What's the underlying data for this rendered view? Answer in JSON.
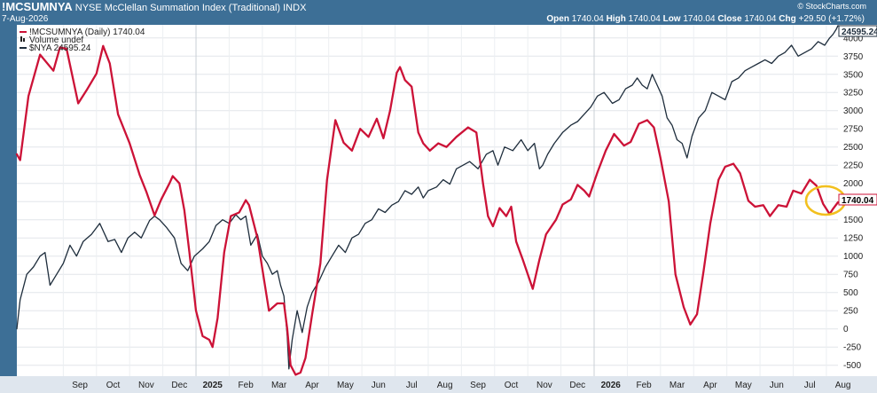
{
  "header": {
    "symbol": "!MCSUMNYA",
    "name": "NYSE McClellan Summation Index (Traditional)",
    "exchange": "INDX",
    "date": "7-Aug-2026",
    "credit": "© StockCharts.com",
    "open_label": "Open",
    "open": "1740.04",
    "high_label": "High",
    "high": "1740.04",
    "low_label": "Low",
    "low": "1740.04",
    "close_label": "Close",
    "close": "1740.04",
    "chg_label": "Chg",
    "chg": "+29.50 (+1.72%)"
  },
  "legend": {
    "item1": "!MCSUMNYA (Daily) 1740.04",
    "item2": "Volume undef",
    "item3": "$NYA 24595.24"
  },
  "price_labels": {
    "nya": "24595.24",
    "sum": "1740.04"
  },
  "colors": {
    "summation": "#cc1237",
    "nya": "#1e2d3c",
    "highlight": "#f2c01e",
    "background": "#3d6f96",
    "plot": "#ffffff"
  },
  "chart_data": {
    "type": "line",
    "y_ticks": [
      -500,
      -250,
      0,
      250,
      500,
      750,
      1000,
      1250,
      1500,
      1750,
      2000,
      2250,
      2500,
      2750,
      3000,
      3250,
      3500,
      3750,
      4000
    ],
    "ylim": [
      -650,
      4180
    ],
    "x_months": [
      "Sep",
      "Oct",
      "Nov",
      "Dec",
      "2025",
      "Feb",
      "Mar",
      "Apr",
      "May",
      "Jun",
      "Jul",
      "Aug",
      "Sep",
      "Oct",
      "Nov",
      "Dec",
      "2026",
      "Feb",
      "Mar",
      "Apr",
      "May",
      "Jun",
      "Jul",
      "Aug"
    ],
    "x_range_months": [
      -1.4,
      23.35
    ],
    "grid": true,
    "legend_position": "top-left",
    "series": [
      {
        "name": "!MCSUMNYA",
        "color": "#cc1237",
        "points": [
          [
            -1.4,
            2400
          ],
          [
            -1.3,
            2320
          ],
          [
            -1.05,
            3200
          ],
          [
            -0.7,
            3770
          ],
          [
            -0.3,
            3550
          ],
          [
            -0.1,
            3870
          ],
          [
            0.1,
            3850
          ],
          [
            0.45,
            3100
          ],
          [
            0.7,
            3280
          ],
          [
            1.0,
            3510
          ],
          [
            1.2,
            3890
          ],
          [
            1.4,
            3650
          ],
          [
            1.65,
            2950
          ],
          [
            2.0,
            2550
          ],
          [
            2.3,
            2120
          ],
          [
            2.5,
            1890
          ],
          [
            2.75,
            1560
          ],
          [
            2.95,
            1780
          ],
          [
            3.2,
            2000
          ],
          [
            3.3,
            2100
          ],
          [
            3.5,
            2000
          ],
          [
            3.65,
            1630
          ],
          [
            3.8,
            1050
          ],
          [
            4.0,
            250
          ],
          [
            4.2,
            -100
          ],
          [
            4.4,
            -150
          ],
          [
            4.5,
            -250
          ],
          [
            4.65,
            150
          ],
          [
            4.85,
            1050
          ],
          [
            5.05,
            1550
          ],
          [
            5.3,
            1600
          ],
          [
            5.5,
            1770
          ],
          [
            5.6,
            1700
          ],
          [
            5.85,
            1250
          ],
          [
            6.0,
            820
          ],
          [
            6.2,
            250
          ],
          [
            6.45,
            350
          ],
          [
            6.65,
            350
          ],
          [
            6.75,
            0
          ],
          [
            6.85,
            -500
          ],
          [
            7.0,
            -630
          ],
          [
            7.15,
            -600
          ],
          [
            7.3,
            -400
          ],
          [
            7.5,
            200
          ],
          [
            7.75,
            900
          ],
          [
            7.95,
            2050
          ],
          [
            8.2,
            2870
          ],
          [
            8.45,
            2560
          ],
          [
            8.7,
            2450
          ],
          [
            8.95,
            2750
          ],
          [
            9.2,
            2640
          ],
          [
            9.45,
            2890
          ],
          [
            9.65,
            2620
          ],
          [
            9.85,
            3000
          ],
          [
            10.05,
            3520
          ],
          [
            10.15,
            3600
          ],
          [
            10.3,
            3420
          ],
          [
            10.5,
            3330
          ],
          [
            10.7,
            2700
          ],
          [
            10.85,
            2550
          ],
          [
            11.05,
            2450
          ],
          [
            11.3,
            2550
          ],
          [
            11.55,
            2500
          ],
          [
            11.85,
            2640
          ],
          [
            12.2,
            2770
          ],
          [
            12.45,
            2700
          ],
          [
            12.65,
            2000
          ],
          [
            12.8,
            1550
          ],
          [
            12.95,
            1410
          ],
          [
            13.15,
            1660
          ],
          [
            13.35,
            1550
          ],
          [
            13.5,
            1680
          ],
          [
            13.65,
            1200
          ],
          [
            13.85,
            950
          ],
          [
            14.0,
            750
          ],
          [
            14.15,
            550
          ],
          [
            14.35,
            950
          ],
          [
            14.55,
            1300
          ],
          [
            14.85,
            1500
          ],
          [
            15.05,
            1710
          ],
          [
            15.3,
            1780
          ],
          [
            15.5,
            1980
          ],
          [
            15.7,
            1900
          ],
          [
            15.85,
            1820
          ],
          [
            16.1,
            2150
          ],
          [
            16.35,
            2450
          ],
          [
            16.6,
            2680
          ],
          [
            16.9,
            2520
          ],
          [
            17.1,
            2570
          ],
          [
            17.35,
            2820
          ],
          [
            17.6,
            2870
          ],
          [
            17.8,
            2770
          ],
          [
            18.0,
            2350
          ],
          [
            18.25,
            1750
          ],
          [
            18.45,
            750
          ],
          [
            18.7,
            300
          ],
          [
            18.9,
            60
          ],
          [
            19.1,
            200
          ],
          [
            19.3,
            800
          ],
          [
            19.5,
            1450
          ],
          [
            19.75,
            2050
          ],
          [
            19.95,
            2230
          ],
          [
            20.2,
            2270
          ],
          [
            20.4,
            2140
          ],
          [
            20.65,
            1760
          ],
          [
            20.85,
            1680
          ],
          [
            21.1,
            1700
          ],
          [
            21.3,
            1550
          ],
          [
            21.55,
            1700
          ],
          [
            21.8,
            1680
          ],
          [
            22.0,
            1900
          ],
          [
            22.25,
            1860
          ],
          [
            22.5,
            2050
          ],
          [
            22.7,
            1970
          ],
          [
            22.9,
            1720
          ],
          [
            23.1,
            1580
          ],
          [
            23.2,
            1650
          ],
          [
            23.35,
            1740
          ]
        ]
      },
      {
        "name": "$NYA",
        "color": "#1e2d3c",
        "points": [
          [
            -1.4,
            0
          ],
          [
            -1.3,
            400
          ],
          [
            -1.1,
            750
          ],
          [
            -0.9,
            850
          ],
          [
            -0.7,
            1000
          ],
          [
            -0.55,
            1050
          ],
          [
            -0.4,
            600
          ],
          [
            -0.2,
            750
          ],
          [
            0.0,
            900
          ],
          [
            0.2,
            1150
          ],
          [
            0.4,
            1000
          ],
          [
            0.6,
            1200
          ],
          [
            0.85,
            1300
          ],
          [
            1.1,
            1450
          ],
          [
            1.35,
            1200
          ],
          [
            1.55,
            1230
          ],
          [
            1.75,
            1050
          ],
          [
            1.95,
            1250
          ],
          [
            2.15,
            1330
          ],
          [
            2.35,
            1250
          ],
          [
            2.6,
            1490
          ],
          [
            2.75,
            1550
          ],
          [
            2.9,
            1500
          ],
          [
            3.1,
            1400
          ],
          [
            3.35,
            1250
          ],
          [
            3.55,
            900
          ],
          [
            3.75,
            800
          ],
          [
            3.95,
            1000
          ],
          [
            4.2,
            1100
          ],
          [
            4.4,
            1200
          ],
          [
            4.6,
            1420
          ],
          [
            4.8,
            1500
          ],
          [
            5.0,
            1450
          ],
          [
            5.2,
            1570
          ],
          [
            5.35,
            1500
          ],
          [
            5.5,
            1550
          ],
          [
            5.65,
            1150
          ],
          [
            5.85,
            1300
          ],
          [
            6.0,
            1000
          ],
          [
            6.15,
            900
          ],
          [
            6.3,
            750
          ],
          [
            6.45,
            800
          ],
          [
            6.55,
            600
          ],
          [
            6.65,
            450
          ],
          [
            6.75,
            -100
          ],
          [
            6.8,
            -550
          ],
          [
            6.9,
            -150
          ],
          [
            7.05,
            250
          ],
          [
            7.2,
            -50
          ],
          [
            7.35,
            300
          ],
          [
            7.5,
            500
          ],
          [
            7.7,
            650
          ],
          [
            7.9,
            850
          ],
          [
            8.1,
            1000
          ],
          [
            8.3,
            1150
          ],
          [
            8.5,
            1050
          ],
          [
            8.7,
            1250
          ],
          [
            8.9,
            1300
          ],
          [
            9.1,
            1450
          ],
          [
            9.3,
            1500
          ],
          [
            9.5,
            1650
          ],
          [
            9.7,
            1600
          ],
          [
            9.9,
            1700
          ],
          [
            10.1,
            1750
          ],
          [
            10.3,
            1900
          ],
          [
            10.5,
            1850
          ],
          [
            10.7,
            1950
          ],
          [
            10.85,
            1800
          ],
          [
            11.0,
            1900
          ],
          [
            11.25,
            1950
          ],
          [
            11.45,
            2050
          ],
          [
            11.65,
            1990
          ],
          [
            11.85,
            2200
          ],
          [
            12.05,
            2250
          ],
          [
            12.25,
            2300
          ],
          [
            12.5,
            2200
          ],
          [
            12.75,
            2400
          ],
          [
            12.95,
            2450
          ],
          [
            13.1,
            2250
          ],
          [
            13.3,
            2500
          ],
          [
            13.55,
            2450
          ],
          [
            13.8,
            2600
          ],
          [
            14.0,
            2450
          ],
          [
            14.2,
            2550
          ],
          [
            14.35,
            2200
          ],
          [
            14.45,
            2250
          ],
          [
            14.6,
            2400
          ],
          [
            14.8,
            2550
          ],
          [
            15.05,
            2700
          ],
          [
            15.3,
            2800
          ],
          [
            15.5,
            2850
          ],
          [
            15.7,
            2950
          ],
          [
            15.9,
            3050
          ],
          [
            16.1,
            3200
          ],
          [
            16.3,
            3250
          ],
          [
            16.55,
            3100
          ],
          [
            16.75,
            3150
          ],
          [
            16.95,
            3300
          ],
          [
            17.15,
            3350
          ],
          [
            17.3,
            3450
          ],
          [
            17.45,
            3350
          ],
          [
            17.6,
            3300
          ],
          [
            17.75,
            3500
          ],
          [
            17.9,
            3350
          ],
          [
            18.05,
            3200
          ],
          [
            18.2,
            2900
          ],
          [
            18.35,
            2800
          ],
          [
            18.5,
            2600
          ],
          [
            18.65,
            2550
          ],
          [
            18.8,
            2350
          ],
          [
            18.95,
            2650
          ],
          [
            19.15,
            2900
          ],
          [
            19.35,
            3000
          ],
          [
            19.55,
            3250
          ],
          [
            19.75,
            3200
          ],
          [
            19.95,
            3150
          ],
          [
            20.15,
            3400
          ],
          [
            20.35,
            3450
          ],
          [
            20.55,
            3550
          ],
          [
            20.75,
            3600
          ],
          [
            20.95,
            3650
          ],
          [
            21.15,
            3700
          ],
          [
            21.35,
            3650
          ],
          [
            21.55,
            3750
          ],
          [
            21.75,
            3800
          ],
          [
            21.95,
            3900
          ],
          [
            22.15,
            3750
          ],
          [
            22.35,
            3800
          ],
          [
            22.55,
            3850
          ],
          [
            22.75,
            3950
          ],
          [
            22.95,
            3900
          ],
          [
            23.1,
            4000
          ],
          [
            23.2,
            4050
          ],
          [
            23.3,
            4120
          ],
          [
            23.35,
            4170
          ]
        ]
      }
    ]
  }
}
